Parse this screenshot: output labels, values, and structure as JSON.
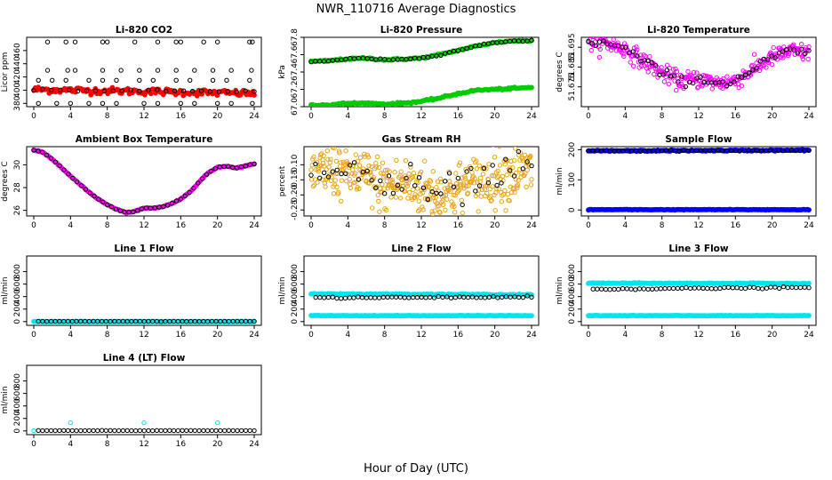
{
  "title": "NWR_110716  Average Diagnostics",
  "xlabel": "Hour of Day (UTC)",
  "chart_data": [
    {
      "type": "scatter",
      "title": "Li-820 CO2",
      "ylabel": "Licor ppm",
      "xlim": [
        0,
        24
      ],
      "ylim": [
        375,
        480
      ],
      "xticks": [
        0,
        4,
        8,
        12,
        16,
        20,
        24
      ],
      "yticks": [
        380,
        400,
        420,
        440,
        460
      ],
      "series": [
        {
          "color": "#ff0000",
          "fill": true,
          "pattern": "flat",
          "x": [
            0,
            24
          ],
          "y": [
            401,
            395
          ],
          "noise": 2.5,
          "n": 144
        },
        {
          "color": "#000000",
          "fill": false,
          "pattern": "flat",
          "x": [
            0,
            24
          ],
          "y": [
            400,
            398
          ],
          "noise": 0.8,
          "n": 26
        },
        {
          "color": "#000000",
          "fill": false,
          "pattern": "points",
          "x": [
            1.5,
            3.5,
            4.5,
            7.5,
            8,
            11,
            13.5,
            15.5,
            16,
            18.5,
            20,
            23.5,
            23.8
          ],
          "y": [
            473,
            473,
            473,
            473,
            473,
            473,
            473,
            473,
            473,
            473,
            473,
            473,
            473
          ]
        },
        {
          "color": "#000000",
          "fill": false,
          "pattern": "points",
          "x": [
            1.5,
            3.7,
            4.5,
            7.5,
            9.5,
            11.5,
            13.5,
            15.5,
            17.5,
            19.5,
            21.5,
            23.7
          ],
          "y": [
            430,
            430,
            430,
            430,
            430,
            430,
            430,
            430,
            430,
            430,
            430,
            430
          ]
        },
        {
          "color": "#000000",
          "fill": false,
          "pattern": "points",
          "x": [
            0.5,
            2,
            3.5,
            6,
            7.5,
            9,
            11.5,
            13,
            15.5,
            17,
            19.5,
            21,
            23.5
          ],
          "y": [
            415,
            415,
            415,
            415,
            415,
            415,
            415,
            415,
            415,
            415,
            415,
            415,
            415
          ]
        },
        {
          "color": "#000000",
          "fill": false,
          "pattern": "points",
          "x": [
            0.5,
            2.5,
            4,
            6,
            7.5,
            9,
            12,
            13.5,
            16,
            17.5,
            20,
            21.5,
            23.8
          ],
          "y": [
            380,
            380,
            380,
            380,
            380,
            380,
            380,
            380,
            380,
            380,
            380,
            380,
            380
          ]
        }
      ]
    },
    {
      "type": "scatter",
      "title": "Li-820 Pressure",
      "ylabel": "kPa",
      "xlim": [
        0,
        24
      ],
      "ylim": [
        67.0,
        67.8
      ],
      "xticks": [
        0,
        4,
        8,
        12,
        16,
        20,
        24
      ],
      "yticks": [
        67.0,
        67.2,
        67.4,
        67.6,
        67.8
      ],
      "series": [
        {
          "color": "#00cc00",
          "fill": true,
          "pattern": "curve",
          "x": [
            0,
            2,
            4,
            6,
            8,
            10,
            12,
            14,
            16,
            18,
            20,
            22,
            24
          ],
          "y": [
            67.52,
            67.53,
            67.55,
            67.56,
            67.54,
            67.55,
            67.56,
            67.6,
            67.65,
            67.7,
            67.74,
            67.76,
            67.76
          ],
          "noise": 0.005,
          "n": 144
        },
        {
          "color": "#00cc00",
          "fill": true,
          "pattern": "curve",
          "x": [
            0,
            2,
            4,
            6,
            8,
            10,
            12,
            14,
            16,
            18,
            20,
            22,
            24
          ],
          "y": [
            67.02,
            67.02,
            67.04,
            67.04,
            67.03,
            67.04,
            67.06,
            67.1,
            67.15,
            67.19,
            67.2,
            67.21,
            67.22
          ],
          "noise": 0.005,
          "n": 144
        },
        {
          "color": "#000000",
          "fill": false,
          "pattern": "curve",
          "x": [
            0,
            2,
            4,
            6,
            8,
            10,
            12,
            14,
            16,
            18,
            20,
            22,
            24
          ],
          "y": [
            67.52,
            67.53,
            67.55,
            67.56,
            67.54,
            67.55,
            67.56,
            67.6,
            67.65,
            67.7,
            67.74,
            67.76,
            67.76
          ],
          "noise": 0.004,
          "n": 52
        }
      ]
    },
    {
      "type": "scatter",
      "title": "Li-820 Temperature",
      "ylabel": "degrees C",
      "xlim": [
        0,
        24
      ],
      "ylim": [
        51.665,
        51.7
      ],
      "xticks": [
        0,
        4,
        8,
        12,
        16,
        20,
        24
      ],
      "yticks": [
        51.675,
        51.685,
        51.695
      ],
      "series": [
        {
          "color": "#ff00ff",
          "fill": false,
          "pattern": "curve",
          "x": [
            0,
            2,
            4,
            6,
            8,
            10,
            12,
            14,
            16,
            18,
            20,
            22,
            24
          ],
          "y": [
            51.698,
            51.697,
            51.694,
            51.688,
            51.682,
            51.678,
            51.679,
            51.677,
            51.678,
            51.684,
            51.69,
            51.693,
            51.692
          ],
          "noise": 0.0022,
          "n": 300
        },
        {
          "color": "#000000",
          "fill": false,
          "pattern": "curve",
          "x": [
            0,
            2,
            4,
            6,
            8,
            10,
            12,
            14,
            16,
            18,
            20,
            22,
            24
          ],
          "y": [
            51.698,
            51.697,
            51.694,
            51.688,
            51.682,
            51.678,
            51.679,
            51.677,
            51.678,
            51.684,
            51.69,
            51.693,
            51.692
          ],
          "noise": 0.0012,
          "n": 60
        }
      ]
    },
    {
      "type": "scatter",
      "title": "Ambient Box Temperature",
      "ylabel": "degrees C",
      "xlim": [
        0,
        24
      ],
      "ylim": [
        25.5,
        31.6
      ],
      "xticks": [
        0,
        4,
        8,
        12,
        16,
        20,
        24
      ],
      "yticks": [
        26,
        28,
        30
      ],
      "series": [
        {
          "color": "#ff00ff",
          "fill": true,
          "pattern": "curve",
          "x": [
            0,
            1,
            2,
            3,
            4,
            5,
            6,
            7,
            8,
            9,
            10,
            11,
            12,
            13,
            14,
            15,
            16,
            17,
            18,
            19,
            20,
            21,
            22,
            23,
            24
          ],
          "y": [
            31.3,
            31.1,
            30.5,
            29.8,
            29.0,
            28.3,
            27.6,
            27.0,
            26.5,
            26.1,
            25.8,
            25.9,
            26.2,
            26.2,
            26.3,
            26.6,
            27.0,
            27.6,
            28.5,
            29.3,
            29.8,
            29.9,
            29.7,
            29.9,
            30.1
          ],
          "noise": 0.02,
          "n": 144
        },
        {
          "color": "#000000",
          "fill": false,
          "pattern": "curve",
          "x": [
            0,
            1,
            2,
            3,
            4,
            5,
            6,
            7,
            8,
            9,
            10,
            11,
            12,
            13,
            14,
            15,
            16,
            17,
            18,
            19,
            20,
            21,
            22,
            23,
            24
          ],
          "y": [
            31.3,
            31.1,
            30.5,
            29.8,
            29.0,
            28.3,
            27.6,
            27.0,
            26.5,
            26.1,
            25.8,
            25.9,
            26.2,
            26.2,
            26.3,
            26.6,
            27.0,
            27.6,
            28.5,
            29.3,
            29.8,
            29.9,
            29.7,
            29.9,
            30.1
          ],
          "noise": 0.01,
          "n": 52
        }
      ]
    },
    {
      "type": "scatter",
      "title": "Gas Stream RH",
      "ylabel": "percent",
      "xlim": [
        0,
        24
      ],
      "ylim": [
        -0.27,
        -0.04
      ],
      "xticks": [
        0,
        4,
        8,
        12,
        16,
        20,
        24
      ],
      "yticks": [
        -0.25,
        -0.2,
        -0.15,
        -0.1
      ],
      "series": [
        {
          "color": "#e8a317",
          "fill": false,
          "pattern": "curve",
          "x": [
            0,
            2,
            4,
            6,
            8,
            10,
            12,
            14,
            16,
            18,
            20,
            22,
            24
          ],
          "y": [
            -0.13,
            -0.12,
            -0.12,
            -0.14,
            -0.17,
            -0.16,
            -0.18,
            -0.2,
            -0.18,
            -0.16,
            -0.14,
            -0.13,
            -0.12
          ],
          "noise": 0.045,
          "n": 420
        },
        {
          "color": "#000000",
          "fill": false,
          "pattern": "curve",
          "x": [
            0,
            2,
            4,
            6,
            8,
            10,
            12,
            14,
            16,
            18,
            20,
            22,
            24
          ],
          "y": [
            -0.13,
            -0.12,
            -0.12,
            -0.14,
            -0.17,
            -0.16,
            -0.18,
            -0.2,
            -0.18,
            -0.16,
            -0.14,
            -0.13,
            -0.12
          ],
          "noise": 0.03,
          "n": 52
        }
      ]
    },
    {
      "type": "scatter",
      "title": "Sample Flow",
      "ylabel": "ml/min",
      "xlim": [
        0,
        24
      ],
      "ylim": [
        -20,
        210
      ],
      "xticks": [
        0,
        4,
        8,
        12,
        16,
        20,
        24
      ],
      "yticks": [
        0,
        100,
        200
      ],
      "series": [
        {
          "color": "#0000ff",
          "fill": true,
          "pattern": "flat",
          "x": [
            0,
            24
          ],
          "y": [
            196,
            198
          ],
          "noise": 1.0,
          "n": 144
        },
        {
          "color": "#0000ff",
          "fill": true,
          "pattern": "flat",
          "x": [
            0,
            24
          ],
          "y": [
            1,
            1
          ],
          "noise": 0.5,
          "n": 144
        },
        {
          "color": "#000000",
          "fill": false,
          "pattern": "flat",
          "x": [
            0,
            24
          ],
          "y": [
            196,
            198
          ],
          "noise": 1.0,
          "n": 52
        }
      ]
    },
    {
      "type": "scatter",
      "title": "Line 1 Flow",
      "ylabel": "ml/min",
      "xlim": [
        0,
        24
      ],
      "ylim": [
        -60,
        1050
      ],
      "xticks": [
        0,
        4,
        8,
        12,
        16,
        20,
        24
      ],
      "yticks": [
        0,
        200,
        400,
        600,
        800
      ],
      "series": [
        {
          "color": "#00e5ee",
          "fill": true,
          "pattern": "flat",
          "x": [
            0,
            24
          ],
          "y": [
            2,
            2
          ],
          "noise": 1.0,
          "n": 144
        },
        {
          "color": "#000000",
          "fill": false,
          "pattern": "flat",
          "x": [
            0.5,
            24
          ],
          "y": [
            3,
            3
          ],
          "noise": 1.0,
          "n": 52
        }
      ]
    },
    {
      "type": "scatter",
      "title": "Line 2 Flow",
      "ylabel": "ml/min",
      "xlim": [
        0,
        24
      ],
      "ylim": [
        -60,
        1050
      ],
      "xticks": [
        0,
        4,
        8,
        12,
        16,
        20,
        24
      ],
      "yticks": [
        0,
        200,
        400,
        600,
        800
      ],
      "series": [
        {
          "color": "#00e5ee",
          "fill": true,
          "pattern": "flat",
          "x": [
            0,
            24
          ],
          "y": [
            445,
            430
          ],
          "noise": 4,
          "n": 144
        },
        {
          "color": "#00e5ee",
          "fill": true,
          "pattern": "flat",
          "x": [
            0,
            24
          ],
          "y": [
            95,
            95
          ],
          "noise": 2,
          "n": 144
        },
        {
          "color": "#000000",
          "fill": false,
          "pattern": "flat",
          "x": [
            0.5,
            24
          ],
          "y": [
            380,
            395
          ],
          "noise": 6,
          "n": 52
        }
      ]
    },
    {
      "type": "scatter",
      "title": "Line 3 Flow",
      "ylabel": "ml/min",
      "xlim": [
        0,
        24
      ],
      "ylim": [
        -60,
        1050
      ],
      "xticks": [
        0,
        4,
        8,
        12,
        16,
        20,
        24
      ],
      "yticks": [
        0,
        200,
        400,
        600,
        800
      ],
      "series": [
        {
          "color": "#00e5ee",
          "fill": true,
          "pattern": "flat",
          "x": [
            0,
            24
          ],
          "y": [
            615,
            610
          ],
          "noise": 4,
          "n": 144
        },
        {
          "color": "#00e5ee",
          "fill": true,
          "pattern": "flat",
          "x": [
            0,
            24
          ],
          "y": [
            95,
            95
          ],
          "noise": 2,
          "n": 144
        },
        {
          "color": "#000000",
          "fill": false,
          "pattern": "flat",
          "x": [
            0.5,
            24
          ],
          "y": [
            520,
            545
          ],
          "noise": 6,
          "n": 52
        }
      ]
    },
    {
      "type": "scatter",
      "title": "Line 4 (LT) Flow",
      "ylabel": "ml/min",
      "xlim": [
        0,
        24
      ],
      "ylim": [
        -60,
        1050
      ],
      "xticks": [
        0,
        4,
        8,
        12,
        16,
        20,
        24
      ],
      "yticks": [
        0,
        200,
        400,
        600,
        800
      ],
      "series": [
        {
          "color": "#00e5ee",
          "fill": false,
          "pattern": "points",
          "x": [
            0,
            4,
            12,
            20
          ],
          "y": [
            5,
            130,
            130,
            130
          ]
        },
        {
          "color": "#000000",
          "fill": false,
          "pattern": "flat",
          "x": [
            0.5,
            24
          ],
          "y": [
            5,
            5
          ],
          "noise": 1.0,
          "n": 52
        }
      ]
    }
  ]
}
